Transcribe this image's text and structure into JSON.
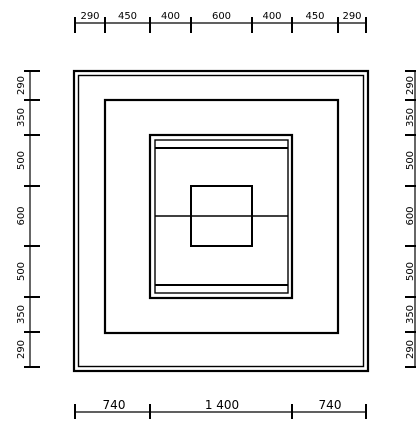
{
  "dimensions": {
    "top": [
      "290",
      "450",
      "400",
      "600",
      "400",
      "450",
      "290"
    ],
    "left": [
      "290",
      "350",
      "500",
      "600",
      "500",
      "350",
      "290"
    ],
    "right": [
      "290",
      "350",
      "500",
      "600",
      "500",
      "350",
      "290"
    ],
    "bottom": [
      "740",
      "1 400",
      "740"
    ]
  }
}
